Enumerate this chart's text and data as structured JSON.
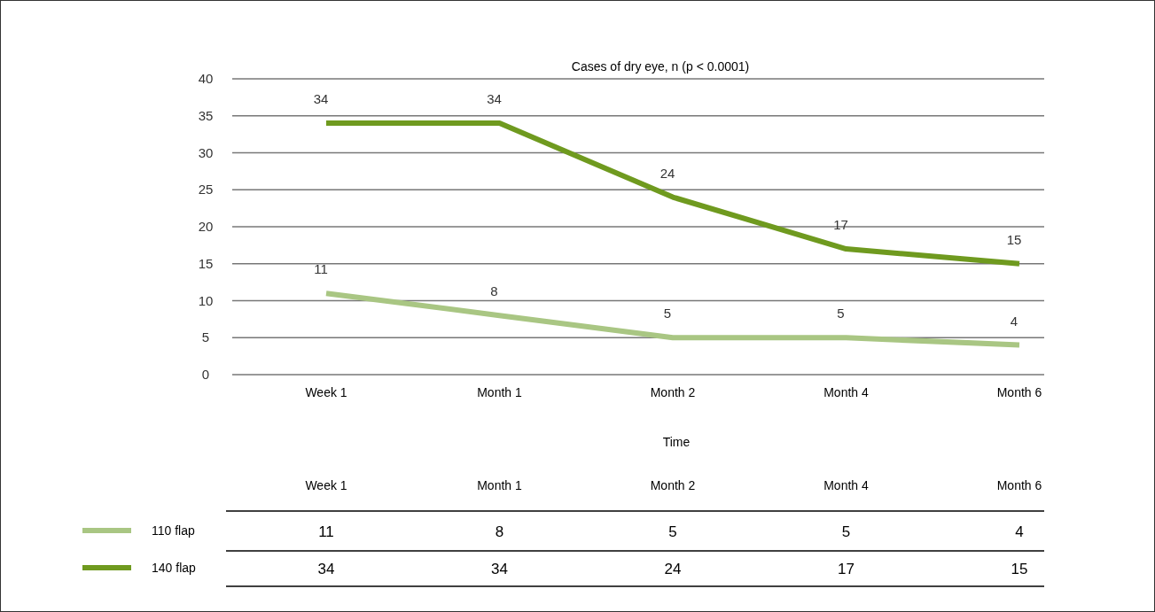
{
  "chart_data": {
    "type": "line",
    "title": "Cases of dry eye, n (p < 0.0001)",
    "xlabel": "Time",
    "categories": [
      "Week 1",
      "Month 1",
      "Month 2",
      "Month 4",
      "Month 6"
    ],
    "series": [
      {
        "name": "110 flap",
        "color": "#a9c683",
        "values": [
          11,
          8,
          5,
          5,
          4
        ]
      },
      {
        "name": "140 flap",
        "color": "#6f9a1f",
        "values": [
          34,
          34,
          24,
          17,
          15
        ]
      }
    ],
    "annotations": [
      {
        "text": "11",
        "x": "Week 1",
        "y": 11
      },
      {
        "text": "8",
        "x": "Month 1",
        "y": 8
      },
      {
        "text": "5",
        "x": "Month 2",
        "y": 5
      },
      {
        "text": "5",
        "x": "Month 4",
        "y": 5
      },
      {
        "text": "4",
        "x": "Month 6",
        "y": 4
      },
      {
        "text": "34",
        "x": "Week 1",
        "y": 34
      },
      {
        "text": "34",
        "x": "Month 1",
        "y": 34
      },
      {
        "text": "24",
        "x": "Month 2",
        "y": 24
      },
      {
        "text": "17",
        "x": "Month 4",
        "y": 17
      },
      {
        "text": "15",
        "x": "Month 6",
        "y": 15
      }
    ],
    "legend": "bottom left",
    "ylim": [
      0,
      40
    ],
    "yticks": [
      0,
      5,
      10,
      15,
      20,
      25,
      30,
      35,
      40
    ],
    "grid": "y",
    "data_labels": true,
    "marker": "none",
    "line_style": "solid"
  }
}
